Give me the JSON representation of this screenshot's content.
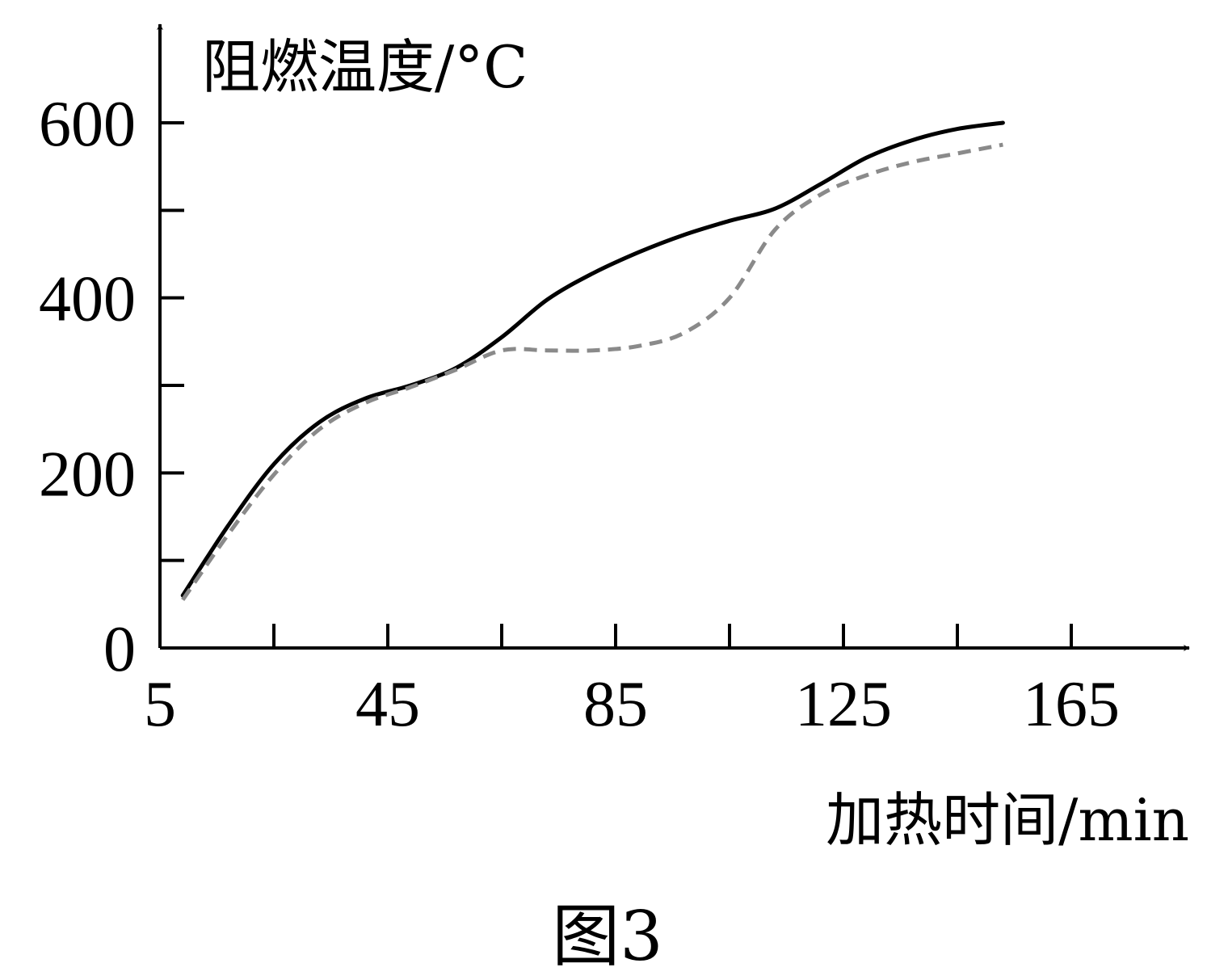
{
  "chart_data": {
    "type": "line",
    "title": "",
    "ylabel": "阻燃温度/°C",
    "xlabel": "加热时间/min",
    "caption": "图3",
    "xlim": [
      5,
      165
    ],
    "ylim": [
      0,
      600
    ],
    "x_tick_labels": [
      "5",
      "45",
      "85",
      "125",
      "165"
    ],
    "x_tick_values": [
      5,
      45,
      85,
      125,
      165
    ],
    "x_minor_ticks": [
      25,
      45,
      65,
      85,
      105,
      125,
      145,
      165
    ],
    "y_tick_labels": [
      "0",
      "200",
      "400",
      "600"
    ],
    "y_tick_values": [
      0,
      200,
      400,
      600
    ],
    "y_minor_ticks": [
      100,
      200,
      300,
      400,
      500,
      600
    ],
    "grid": false,
    "series": [
      {
        "style": "solid",
        "color": "#000000",
        "x": [
          9,
          17,
          25,
          33,
          41,
          49,
          57,
          65,
          73,
          81,
          89,
          97,
          105,
          113,
          121,
          129,
          137,
          145,
          153
        ],
        "y": [
          60,
          140,
          210,
          258,
          285,
          300,
          320,
          355,
          398,
          428,
          452,
          472,
          488,
          502,
          530,
          560,
          580,
          593,
          600
        ]
      },
      {
        "style": "dashed",
        "color": "#8a8a8a",
        "x": [
          9,
          17,
          25,
          33,
          41,
          49,
          57,
          65,
          73,
          81,
          89,
          97,
          105,
          113,
          121,
          129,
          137,
          145,
          153
        ],
        "y": [
          55,
          130,
          198,
          250,
          280,
          298,
          318,
          340,
          340,
          340,
          345,
          360,
          400,
          478,
          518,
          540,
          555,
          565,
          575
        ]
      }
    ]
  }
}
